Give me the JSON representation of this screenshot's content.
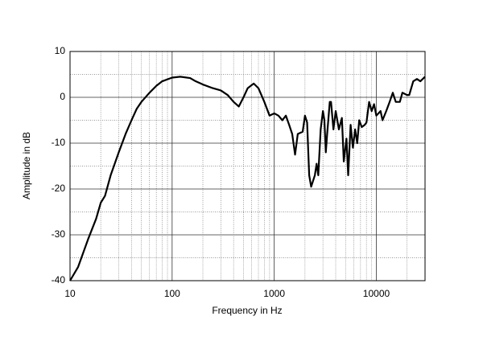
{
  "chart_data": {
    "type": "line",
    "xlabel": "Frequency in Hz",
    "ylabel": "Amplitude in dB",
    "xscale": "log",
    "grid": true,
    "color": "#000000",
    "xlim": [
      10,
      30000
    ],
    "ylim": [
      -40,
      10
    ],
    "xticks": [
      10,
      100,
      1000,
      10000
    ],
    "xminor": [
      20,
      30,
      40,
      50,
      60,
      70,
      80,
      90,
      200,
      300,
      400,
      500,
      600,
      700,
      800,
      900,
      2000,
      3000,
      4000,
      5000,
      6000,
      7000,
      8000,
      9000,
      20000
    ],
    "yticks": [
      -40,
      -30,
      -20,
      -10,
      0,
      10
    ],
    "yminor": [
      -35,
      -25,
      -15,
      -5,
      5
    ],
    "x": [
      10,
      12,
      15,
      18,
      20,
      22,
      25,
      30,
      35,
      40,
      45,
      50,
      60,
      70,
      80,
      100,
      120,
      150,
      170,
      200,
      250,
      300,
      350,
      400,
      450,
      500,
      550,
      630,
      700,
      800,
      900,
      1000,
      1100,
      1200,
      1300,
      1400,
      1500,
      1600,
      1700,
      1900,
      2000,
      2100,
      2200,
      2300,
      2500,
      2600,
      2700,
      2850,
      3000,
      3100,
      3200,
      3300,
      3500,
      3600,
      3800,
      4000,
      4300,
      4600,
      4800,
      5100,
      5300,
      5600,
      5900,
      6200,
      6500,
      6800,
      7200,
      7700,
      8000,
      8500,
      9000,
      9500,
      10000,
      11000,
      11500,
      12500,
      13500,
      14500,
      15500,
      17000,
      18000,
      20000,
      21000,
      23000,
      25000,
      27000,
      30000
    ],
    "values": [
      -40,
      -37,
      -31,
      -26.5,
      -23,
      -21.5,
      -17,
      -12,
      -8,
      -5,
      -2.5,
      -1,
      1,
      2.5,
      3.5,
      4.3,
      4.5,
      4.2,
      3.5,
      2.8,
      2,
      1.5,
      0.5,
      -1,
      -2,
      0,
      2,
      3,
      2,
      -1,
      -4,
      -3.5,
      -4,
      -5,
      -4,
      -6,
      -8,
      -12.5,
      -8,
      -7.5,
      -4,
      -5.5,
      -17,
      -19.5,
      -17,
      -14.5,
      -17,
      -7,
      -3,
      -5,
      -12,
      -8,
      -1,
      -1,
      -7,
      -3,
      -7,
      -4.5,
      -14,
      -9,
      -17,
      -6,
      -11,
      -7,
      -10,
      -5,
      -6.5,
      -6,
      -5.5,
      -1,
      -3,
      -1.5,
      -4,
      -3,
      -5,
      -3,
      -1,
      1,
      -1,
      -1,
      1,
      0.5,
      0.5,
      3.5,
      4,
      3.5,
      4.5
    ]
  }
}
